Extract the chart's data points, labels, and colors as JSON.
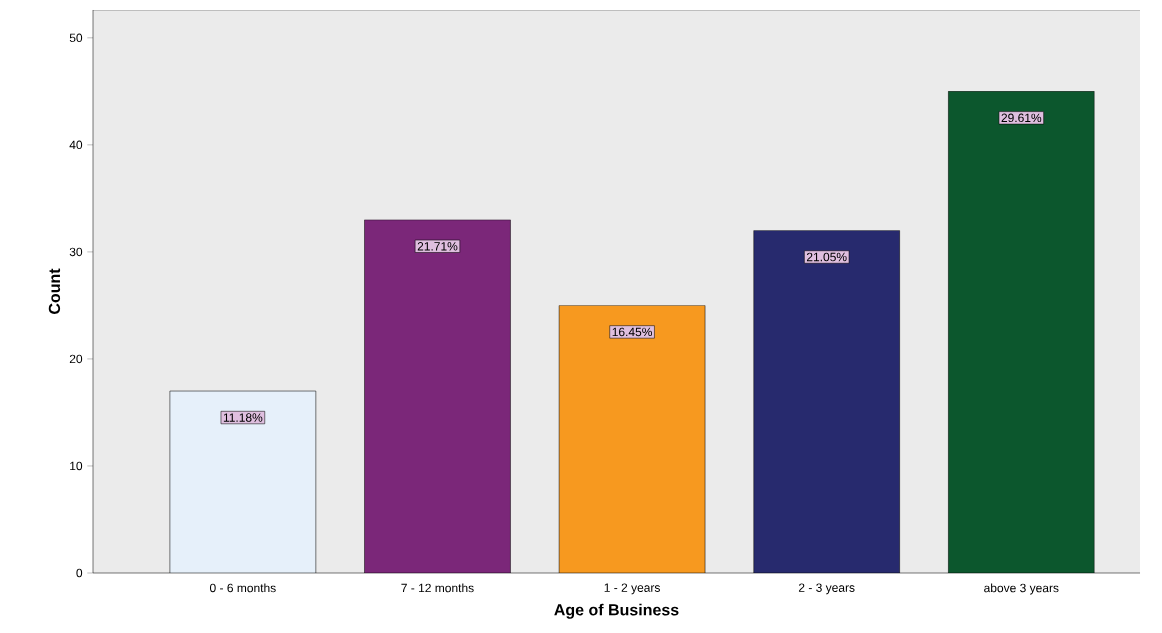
{
  "chart_data": {
    "type": "bar",
    "xlabel": "Age of Business",
    "ylabel": "Count",
    "categories": [
      "0 - 6 months",
      "7 - 12 months",
      "1 - 2 years",
      "2 - 3 years",
      "above 3 years"
    ],
    "values": [
      17,
      33,
      25,
      32,
      45
    ],
    "colors": [
      "#e6f0fa",
      "#7b2779",
      "#f7991f",
      "#272a6e",
      "#0c572d"
    ],
    "annotations": [
      {
        "text": "11.18%",
        "x": "0 - 6 months",
        "y": 17
      },
      {
        "text": "21.71%",
        "x": "7 - 12 months",
        "y": 33
      },
      {
        "text": "16.45%",
        "x": "1 - 2 years",
        "y": 25
      },
      {
        "text": "21.05%",
        "x": "2 - 3 years",
        "y": 32
      },
      {
        "text": "29.61%",
        "x": "above 3 years",
        "y": 45
      }
    ],
    "ylim": [
      0,
      52.6
    ],
    "yticks": [
      0,
      10,
      20,
      30,
      40,
      50
    ],
    "grid": false
  }
}
